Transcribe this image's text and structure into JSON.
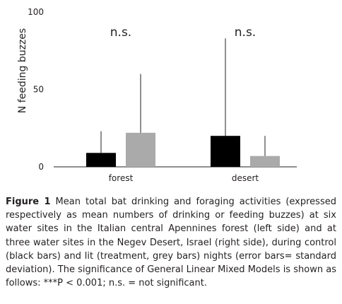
{
  "chart_data": {
    "type": "bar",
    "categories": [
      "forest",
      "desert"
    ],
    "series": [
      {
        "color": "#000000",
        "values": [
          9,
          20
        ],
        "error": [
          14,
          63
        ]
      },
      {
        "color": "#aaaaaa",
        "values": [
          22,
          7
        ],
        "error": [
          38,
          13
        ]
      }
    ],
    "ylabel": "N feeding buzzes",
    "ylim": [
      0,
      100
    ],
    "yticks": [
      0,
      50,
      100
    ],
    "annotations": [
      "n.s.",
      "n.s."
    ],
    "grid": false
  },
  "caption": {
    "label": "Figure 1",
    "text": " Mean total bat drinking and foraging activities (expressed respectively as mean numbers of drinking or feeding buzzes) at six water sites in the Italian central Apennines forest (left side) and at three water sites in the Negev Desert, Israel (right side), during control (black bars) and lit (treatment, grey bars) nights (error bars= standard deviation). The significance of General Linear Mixed Models is shown as follows: ***P < 0.001; n.s. = not significant."
  }
}
